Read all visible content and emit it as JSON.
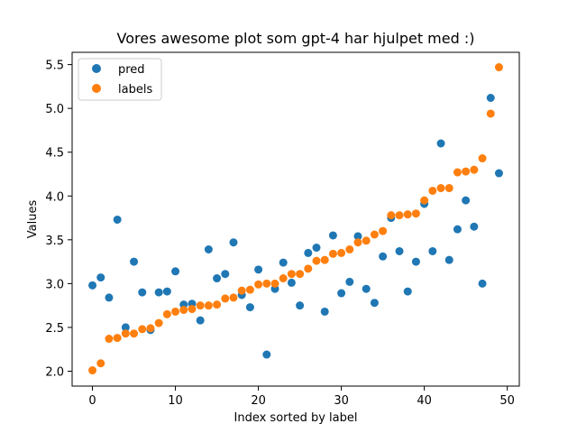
{
  "chart_data": {
    "type": "scatter",
    "title": "Vores awesome plot som gpt-4 har hjulpet med :)",
    "xlabel": "Index sorted by label",
    "ylabel": "Values",
    "xlim": [
      -2.45,
      51.45
    ],
    "ylim": [
      1.83,
      5.64
    ],
    "xticks": [
      0,
      10,
      20,
      30,
      40,
      50
    ],
    "yticks": [
      2.0,
      2.5,
      3.0,
      3.5,
      4.0,
      4.5,
      5.0,
      5.5
    ],
    "xtick_labels": [
      "0",
      "10",
      "20",
      "30",
      "40",
      "50"
    ],
    "ytick_labels": [
      "2.0",
      "2.5",
      "3.0",
      "3.5",
      "4.0",
      "4.5",
      "5.0",
      "5.5"
    ],
    "grid": false,
    "legend_position": "top-left",
    "x": [
      0,
      1,
      2,
      3,
      4,
      5,
      6,
      7,
      8,
      9,
      10,
      11,
      12,
      13,
      14,
      15,
      16,
      17,
      18,
      19,
      20,
      21,
      22,
      23,
      24,
      25,
      26,
      27,
      28,
      29,
      30,
      31,
      32,
      33,
      34,
      35,
      36,
      37,
      38,
      39,
      40,
      41,
      42,
      43,
      44,
      45,
      46,
      47,
      48,
      49
    ],
    "series": [
      {
        "name": "pred",
        "color": "#1f77b4",
        "values": [
          2.98,
          3.07,
          2.84,
          3.73,
          2.5,
          3.25,
          2.9,
          2.47,
          2.9,
          2.91,
          3.14,
          2.76,
          2.77,
          2.58,
          3.39,
          3.06,
          3.11,
          3.47,
          2.87,
          2.73,
          3.16,
          2.19,
          2.94,
          3.24,
          3.01,
          2.75,
          3.35,
          3.41,
          2.68,
          3.55,
          2.89,
          3.02,
          3.54,
          2.94,
          2.78,
          3.31,
          3.75,
          3.37,
          2.91,
          3.25,
          3.91,
          3.37,
          4.6,
          3.27,
          3.62,
          3.95,
          3.65,
          3.0,
          5.12,
          4.26
        ]
      },
      {
        "name": "labels",
        "color": "#ff7f0e",
        "values": [
          2.01,
          2.09,
          2.37,
          2.38,
          2.43,
          2.43,
          2.48,
          2.49,
          2.55,
          2.65,
          2.68,
          2.7,
          2.71,
          2.75,
          2.75,
          2.76,
          2.83,
          2.84,
          2.92,
          2.93,
          2.99,
          3.0,
          3.0,
          3.06,
          3.11,
          3.11,
          3.17,
          3.26,
          3.27,
          3.34,
          3.35,
          3.39,
          3.47,
          3.49,
          3.56,
          3.6,
          3.78,
          3.78,
          3.79,
          3.8,
          3.95,
          4.06,
          4.09,
          4.09,
          4.27,
          4.28,
          4.3,
          4.43,
          4.94,
          5.47
        ]
      }
    ]
  }
}
